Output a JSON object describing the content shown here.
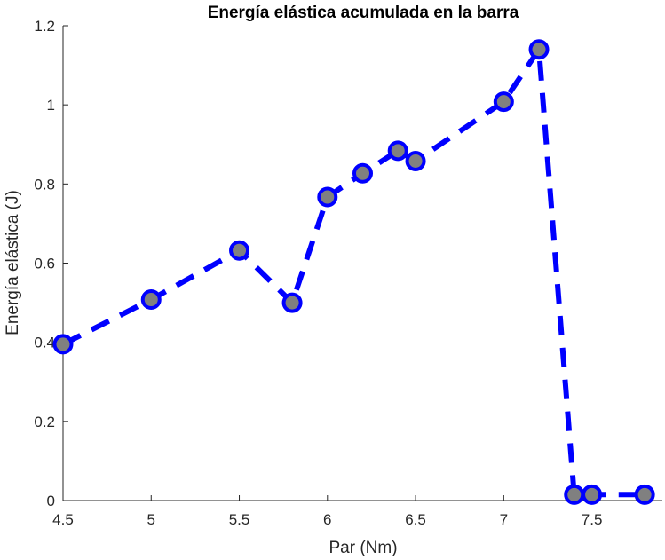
{
  "chart_data": {
    "type": "line",
    "title": "Energía elástica acumulada en la barra",
    "xlabel": "Par (Nm)",
    "ylabel": "Energía elástica (J)",
    "xlim": [
      4.5,
      7.9
    ],
    "ylim": [
      0,
      1.2
    ],
    "xticks": [
      4.5,
      5,
      5.5,
      6,
      6.5,
      7,
      7.5
    ],
    "xtick_labels": [
      "4.5",
      "5",
      "5.5",
      "6",
      "6.5",
      "7",
      "7.5"
    ],
    "yticks": [
      0,
      0.2,
      0.4,
      0.6,
      0.8,
      1,
      1.2
    ],
    "ytick_labels": [
      "0",
      "0.2",
      "0.4",
      "0.6",
      "0.8",
      "1",
      "1.2"
    ],
    "grid": false,
    "line_style": "dashed",
    "line_color": "#0000ff",
    "marker_face_color": "#808080",
    "marker_edge_color": "#0000ff",
    "x": [
      4.5,
      5.0,
      5.5,
      5.8,
      6.0,
      6.2,
      6.4,
      6.5,
      7.0,
      7.2,
      7.4,
      7.5,
      7.8
    ],
    "y": [
      0.395,
      0.508,
      0.632,
      0.5,
      0.767,
      0.827,
      0.884,
      0.858,
      1.008,
      1.14,
      0.015,
      0.015,
      0.015
    ]
  }
}
